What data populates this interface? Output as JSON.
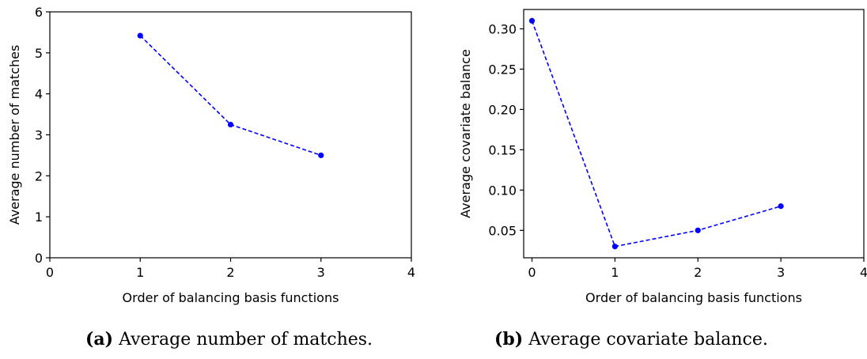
{
  "chart_data": [
    {
      "type": "line",
      "xlabel": "Order of balancing basis functions",
      "ylabel": "Average number of matches",
      "xlim": [
        0,
        4
      ],
      "ylim": [
        0,
        6
      ],
      "xticks": [
        0,
        1,
        2,
        3,
        4
      ],
      "yticks": [
        0,
        1,
        2,
        3,
        4,
        5,
        6
      ],
      "grid": false,
      "color": "#0000ff",
      "line_style": "dashed",
      "marker": "circle",
      "x": [
        1,
        2,
        3
      ],
      "y": [
        5.42,
        3.25,
        2.5
      ]
    },
    {
      "type": "line",
      "xlabel": "Order of balancing basis functions",
      "ylabel": "Average covariate balance",
      "xlim": [
        -0.1,
        4
      ],
      "ylim": [
        0.016,
        0.324
      ],
      "xticks": [
        0,
        1,
        2,
        3,
        4
      ],
      "yticks": [
        0.05,
        0.1,
        0.15,
        0.2,
        0.25,
        0.3
      ],
      "ytick_labels": [
        "0.05",
        "0.10",
        "0.15",
        "0.20",
        "0.25",
        "0.30"
      ],
      "grid": false,
      "color": "#0000ff",
      "line_style": "dashed",
      "marker": "circle",
      "x": [
        0,
        1,
        2,
        3
      ],
      "y": [
        0.31,
        0.03,
        0.05,
        0.08
      ]
    }
  ],
  "captions": [
    {
      "tag": "(a)",
      "text": "Average number of matches."
    },
    {
      "tag": "(b)",
      "text": "Average covariate balance."
    }
  ]
}
